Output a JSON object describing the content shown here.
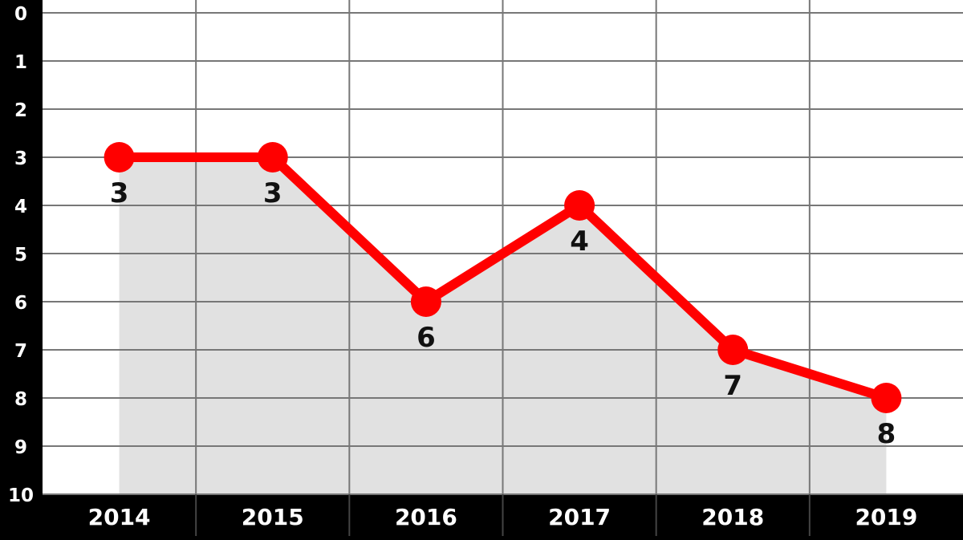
{
  "chart_data": {
    "type": "line",
    "categories": [
      "2014",
      "2015",
      "2016",
      "2017",
      "2018",
      "2019"
    ],
    "values": [
      3,
      3,
      6,
      4,
      7,
      8
    ],
    "data_labels": [
      "3",
      "3",
      "6",
      "4",
      "7",
      "8"
    ],
    "y_ticks": [
      "0",
      "1",
      "2",
      "3",
      "4",
      "5",
      "6",
      "7",
      "8",
      "9",
      "10"
    ],
    "ylim": [
      0,
      10
    ],
    "y_inverted": true,
    "grid": true,
    "area_fill": true,
    "colors": {
      "line": "#ff0000",
      "area": "#e1e1e1",
      "plot_background": "#ffffff",
      "frame": "#000000",
      "grid": "#777777",
      "tick_text": "#ffffff",
      "label_text": "#111111"
    }
  }
}
